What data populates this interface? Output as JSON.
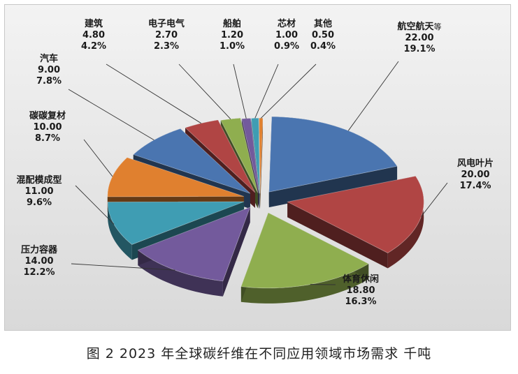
{
  "chart_data": {
    "type": "pie",
    "style": "exploded 3d",
    "title": "",
    "caption": "图 2  2023 年全球碳纤维在不同应用领域市场需求  千吨",
    "unit": "千吨",
    "slices": [
      {
        "label": "航空航天",
        "label_suffix": "等",
        "value": 22.0,
        "value_text": "22.00",
        "percent": 19.1,
        "percent_text": "19.1%",
        "color": "#4a75b0"
      },
      {
        "label": "风电叶片",
        "value": 20.0,
        "value_text": "20.00",
        "percent": 17.4,
        "percent_text": "17.4%",
        "color": "#b04544"
      },
      {
        "label": "体育休闲",
        "value": 18.8,
        "value_text": "18.80",
        "percent": 16.3,
        "percent_text": "16.3%",
        "color": "#8fae4f"
      },
      {
        "label": "压力容器",
        "value": 14.0,
        "value_text": "14.00",
        "percent": 12.2,
        "percent_text": "12.2%",
        "color": "#735a9c"
      },
      {
        "label": "混配模成型",
        "value": 11.0,
        "value_text": "11.00",
        "percent": 9.6,
        "percent_text": "9.6%",
        "color": "#3f9db3"
      },
      {
        "label": "碳碳复材",
        "value": 10.0,
        "value_text": "10.00",
        "percent": 8.7,
        "percent_text": "8.7%",
        "color": "#e0802f"
      },
      {
        "label": "汽车",
        "value": 9.0,
        "value_text": "9.00",
        "percent": 7.8,
        "percent_text": "7.8%",
        "color": "#4a75b0"
      },
      {
        "label": "建筑",
        "value": 4.8,
        "value_text": "4.80",
        "percent": 4.2,
        "percent_text": "4.2%",
        "color": "#b04544"
      },
      {
        "label": "电子电气",
        "value": 2.7,
        "value_text": "2.70",
        "percent": 2.3,
        "percent_text": "2.3%",
        "color": "#8fae4f"
      },
      {
        "label": "船舶",
        "value": 1.2,
        "value_text": "1.20",
        "percent": 1.0,
        "percent_text": "1.0%",
        "color": "#735a9c"
      },
      {
        "label": "芯材",
        "value": 1.0,
        "value_text": "1.00",
        "percent": 0.9,
        "percent_text": "0.9%",
        "color": "#3f9db3"
      },
      {
        "label": "其他",
        "value": 0.5,
        "value_text": "0.50",
        "percent": 0.4,
        "percent_text": "0.4%",
        "color": "#e0802f"
      }
    ]
  }
}
